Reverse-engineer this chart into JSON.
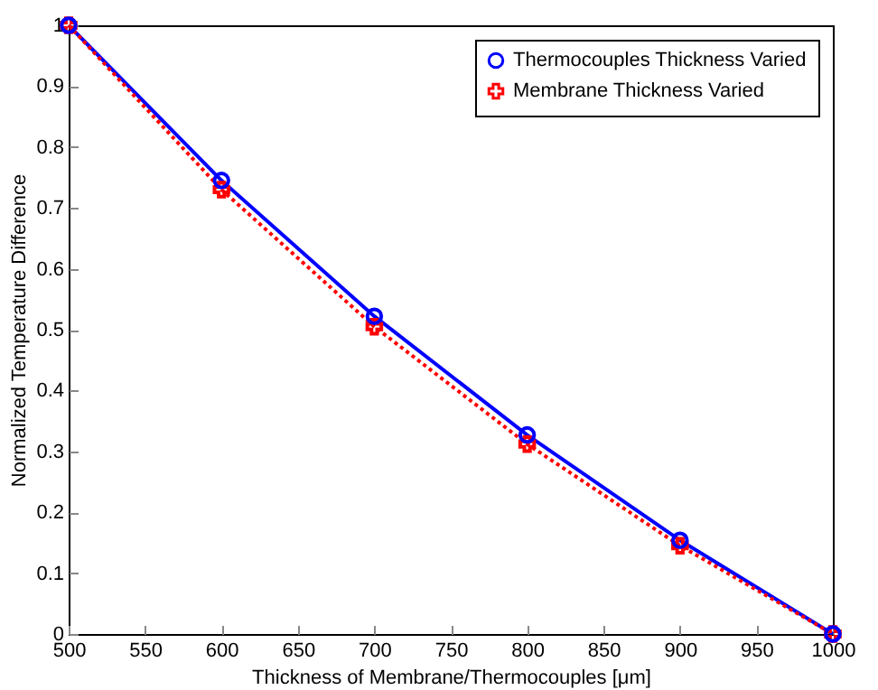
{
  "chart_data": {
    "type": "line",
    "xlabel": "Thickness of Membrane/Thermocouples [μm]",
    "ylabel": "Normalized Temperature Difference",
    "x": [
      500,
      600,
      700,
      800,
      900,
      1000
    ],
    "series": [
      {
        "name": "Thermocouples Thickness Varied",
        "color": "#0000ff",
        "marker": "circle",
        "line_style": "solid",
        "values": [
          1,
          0.745,
          0.522,
          0.327,
          0.154,
          0
        ]
      },
      {
        "name": "Membrane Thickness Varied",
        "color": "#ff0000",
        "marker": "cross",
        "line_style": "dotted",
        "values": [
          1,
          0.73,
          0.505,
          0.312,
          0.145,
          0
        ]
      }
    ],
    "xlim": [
      500,
      1000
    ],
    "xticks": [
      500,
      550,
      600,
      650,
      700,
      750,
      800,
      850,
      900,
      950,
      1000
    ],
    "ylim": [
      0,
      1
    ],
    "yticks": [
      0,
      0.1,
      0.2,
      0.3,
      0.4,
      0.5,
      0.6,
      0.7,
      0.8,
      0.9,
      1
    ],
    "grid": false,
    "legend": "top right"
  }
}
